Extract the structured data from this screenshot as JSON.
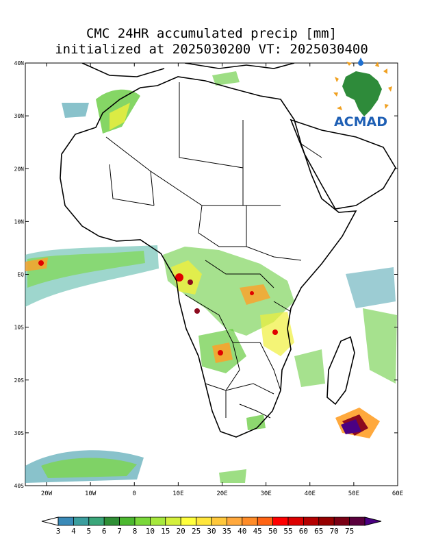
{
  "title": {
    "line1": "CMC 24HR accumulated precip [mm]",
    "line2": "initialized at 2025030200 VT: 2025030400"
  },
  "lat_labels": [
    "40N",
    "30N",
    "20N",
    "10N",
    "EQ",
    "10S",
    "20S",
    "30S",
    "40S"
  ],
  "lon_labels": [
    "20W",
    "10W",
    "0",
    "10E",
    "20E",
    "30E",
    "40E",
    "50E",
    "60E"
  ],
  "logo": {
    "text": "ACMAD",
    "icon": "africa-map-logo-icon"
  },
  "colorbar": {
    "labels": [
      "3",
      "4",
      "5",
      "6",
      "7",
      "8",
      "10",
      "15",
      "20",
      "25",
      "30",
      "35",
      "40",
      "45",
      "50",
      "55",
      "60",
      "65",
      "70",
      "75"
    ],
    "colors": [
      "#3a8ab8",
      "#3b9e9e",
      "#3aa67a",
      "#2f8f36",
      "#4cb830",
      "#7ad83a",
      "#a6e83c",
      "#d4f03c",
      "#ffff3c",
      "#ffe63c",
      "#ffc83c",
      "#ffa83c",
      "#ff8c28",
      "#ff6414",
      "#ff0000",
      "#dc0000",
      "#b40000",
      "#960000",
      "#7a0014",
      "#5a003c",
      "#4b0082"
    ]
  },
  "precip_colors": {
    "light": "#3a9aa8",
    "green": "#5cc832",
    "yellow": "#f0f03c",
    "orange": "#ffa028",
    "red": "#e00000",
    "darkred": "#8c0a1e",
    "purple": "#4b0082"
  }
}
